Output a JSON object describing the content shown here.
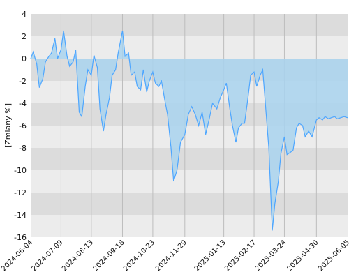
{
  "chart_data": {
    "type": "area",
    "title": "",
    "xlabel": "",
    "ylabel": "[Zmiany %]",
    "ylim": [
      -16,
      4
    ],
    "yticks": [
      4,
      2,
      0,
      -2,
      -4,
      -6,
      -8,
      -10,
      -12,
      -14,
      -16
    ],
    "xticks": [
      "2024-06-04",
      "2024-07-09",
      "2024-08-13",
      "2024-09-18",
      "2024-10-23",
      "2024-11-29",
      "2025-01-13",
      "2025-02-17",
      "2025-03-24",
      "2025-04-30",
      "2025-06-05"
    ],
    "grid": true,
    "colors": {
      "line": "#4da6ff",
      "fill": "#a9d4ef",
      "band_dark": "#dcdcdc",
      "band_light": "#ececec",
      "vgrid": "#bdbdbd"
    },
    "series": [
      {
        "x": [
          "2024-06-04",
          "2024-06-07",
          "2024-06-11",
          "2024-06-14",
          "2024-06-18",
          "2024-06-21",
          "2024-06-25",
          "2024-06-28",
          "2024-07-02",
          "2024-07-05",
          "2024-07-09",
          "2024-07-12",
          "2024-07-16",
          "2024-07-19",
          "2024-07-23",
          "2024-07-26",
          "2024-07-30",
          "2024-08-02",
          "2024-08-06",
          "2024-08-09",
          "2024-08-13",
          "2024-08-16",
          "2024-08-20",
          "2024-08-23",
          "2024-08-27",
          "2024-08-30",
          "2024-09-03",
          "2024-09-06",
          "2024-09-10",
          "2024-09-13",
          "2024-09-18",
          "2024-09-21",
          "2024-09-25",
          "2024-09-28",
          "2024-10-02",
          "2024-10-05",
          "2024-10-09",
          "2024-10-12",
          "2024-10-16",
          "2024-10-19",
          "2024-10-23",
          "2024-10-26",
          "2024-10-30",
          "2024-11-02",
          "2024-11-06",
          "2024-11-09",
          "2024-11-13",
          "2024-11-16",
          "2024-11-20",
          "2024-11-24",
          "2024-11-29",
          "2024-12-03",
          "2024-12-07",
          "2024-12-11",
          "2024-12-15",
          "2024-12-19",
          "2024-12-23",
          "2024-12-27",
          "2024-12-31",
          "2025-01-05",
          "2025-01-09",
          "2025-01-13",
          "2025-01-16",
          "2025-01-20",
          "2025-01-23",
          "2025-01-27",
          "2025-01-30",
          "2025-02-03",
          "2025-02-06",
          "2025-02-10",
          "2025-02-13",
          "2025-02-17",
          "2025-02-20",
          "2025-02-24",
          "2025-02-27",
          "2025-03-03",
          "2025-03-06",
          "2025-03-10",
          "2025-03-13",
          "2025-03-17",
          "2025-03-20",
          "2025-03-24",
          "2025-03-27",
          "2025-03-31",
          "2025-04-03",
          "2025-04-07",
          "2025-04-10",
          "2025-04-14",
          "2025-04-17",
          "2025-04-21",
          "2025-04-25",
          "2025-04-30",
          "2025-05-03",
          "2025-05-07",
          "2025-05-10",
          "2025-05-14",
          "2025-05-17",
          "2025-05-21",
          "2025-05-24",
          "2025-05-28",
          "2025-06-01",
          "2025-06-05"
        ],
        "values": [
          0.0,
          0.6,
          -0.5,
          -2.6,
          -1.8,
          -0.3,
          0.2,
          0.5,
          1.8,
          0.0,
          0.8,
          2.5,
          0.2,
          -0.7,
          -0.3,
          0.8,
          -4.8,
          -5.2,
          -2.5,
          -1.0,
          -1.5,
          0.3,
          -0.8,
          -4.5,
          -6.5,
          -5.0,
          -3.5,
          -1.5,
          -1.0,
          0.5,
          2.5,
          0.2,
          0.5,
          -1.5,
          -1.2,
          -2.5,
          -2.8,
          -1.0,
          -3.0,
          -2.0,
          -1.2,
          -2.2,
          -2.5,
          -2.0,
          -3.8,
          -5.0,
          -8.0,
          -11.0,
          -10.0,
          -7.5,
          -6.8,
          -5.0,
          -4.3,
          -5.0,
          -6.0,
          -4.8,
          -6.8,
          -5.5,
          -4.0,
          -4.5,
          -3.5,
          -2.8,
          -2.2,
          -4.5,
          -6.0,
          -7.5,
          -6.2,
          -5.8,
          -5.8,
          -3.5,
          -1.5,
          -1.2,
          -2.5,
          -1.5,
          -1.0,
          -5.0,
          -8.0,
          -15.4,
          -13.0,
          -11.0,
          -8.5,
          -7.0,
          -8.6,
          -8.4,
          -8.2,
          -6.2,
          -5.8,
          -6.0,
          -7.0,
          -6.5,
          -7.0,
          -5.5,
          -5.3,
          -5.5,
          -5.2,
          -5.4,
          -5.3,
          -5.2,
          -5.4,
          -5.3,
          -5.2,
          -5.3
        ]
      }
    ]
  }
}
